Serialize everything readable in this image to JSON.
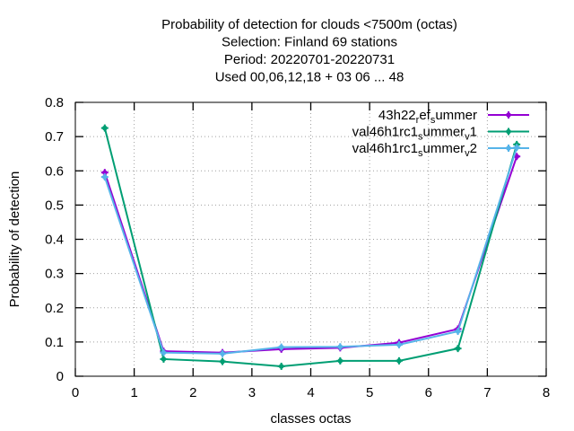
{
  "chart_data": {
    "type": "line",
    "title_lines": [
      "Probability of detection  for clouds <7500m (octas)",
      "Selection: Finland     69 stations",
      "Period: 20220701-20220731",
      "Used  00,06,12,18  + 03 06 ... 48"
    ],
    "xlabel": "classes octas",
    "ylabel": "Probability of detection",
    "xlim": [
      0,
      8
    ],
    "ylim": [
      0,
      0.8
    ],
    "xticks": [
      0,
      1,
      2,
      3,
      4,
      5,
      6,
      7,
      8
    ],
    "yticks": [
      0,
      0.1,
      0.2,
      0.3,
      0.4,
      0.5,
      0.6,
      0.7,
      0.8
    ],
    "ytick_labels": [
      "0",
      "0.1",
      "0.2",
      "0.3",
      "0.4",
      "0.5",
      "0.6",
      "0.7",
      "0.8"
    ],
    "grid": true,
    "legend_position": "top-right",
    "series": [
      {
        "name_parts": [
          [
            "43h22",
            "normal"
          ],
          [
            "r",
            "sub"
          ],
          [
            "ef",
            "normal"
          ],
          [
            "s",
            "sub"
          ],
          [
            "ummer",
            "normal"
          ]
        ],
        "color": "#9400d3",
        "x": [
          0.5,
          1.5,
          2.5,
          3.5,
          4.5,
          5.5,
          6.5,
          7.5
        ],
        "values": [
          0.595,
          0.073,
          0.069,
          0.079,
          0.083,
          0.098,
          0.138,
          0.642
        ]
      },
      {
        "name_parts": [
          [
            "val46h1rc1",
            "normal"
          ],
          [
            "s",
            "sub"
          ],
          [
            "ummer",
            "normal"
          ],
          [
            "v",
            "sub"
          ],
          [
            "1",
            "normal"
          ]
        ],
        "color": "#009e73",
        "x": [
          0.5,
          1.5,
          2.5,
          3.5,
          4.5,
          5.5,
          6.5,
          7.5
        ],
        "values": [
          0.725,
          0.05,
          0.043,
          0.029,
          0.045,
          0.045,
          0.081,
          0.677
        ]
      },
      {
        "name_parts": [
          [
            "val46h1rc1",
            "normal"
          ],
          [
            "s",
            "sub"
          ],
          [
            "ummer",
            "normal"
          ],
          [
            "v",
            "sub"
          ],
          [
            "2",
            "normal"
          ]
        ],
        "color": "#56b4e9",
        "x": [
          0.5,
          1.5,
          2.5,
          3.5,
          4.5,
          5.5,
          6.5,
          7.5
        ],
        "values": [
          0.582,
          0.069,
          0.066,
          0.085,
          0.086,
          0.092,
          0.131,
          0.668
        ]
      }
    ]
  }
}
